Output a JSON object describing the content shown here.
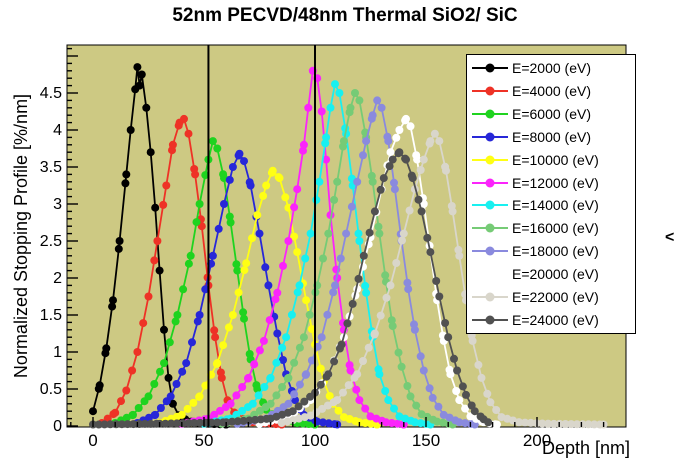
{
  "title": "52nm PECVD/48nm Thermal SiO2/ SiC",
  "side_glyph": "<",
  "colors": {
    "page_background": "#ffffff",
    "plot_background": "#cdc983",
    "frame_border": "#000000",
    "interface_lines": "#000000",
    "legend_background": "#ffffff"
  },
  "chart_data": {
    "type": "scatter",
    "title": "52nm PECVD/48nm Thermal SiO2/ SiC",
    "xlabel": "Depth [nm]",
    "ylabel": "Normalized Stopping Profile [%/nm]",
    "xlim": [
      -11.7,
      240
    ],
    "ylim": [
      0,
      5.15
    ],
    "x_ticks": [
      0,
      50,
      100,
      150,
      200
    ],
    "x_minor_step": 10,
    "y_ticks": [
      "0",
      "0.5",
      "1",
      "1.5",
      "2",
      "2.5",
      "3",
      "3.5",
      "4",
      "4.5"
    ],
    "y_minor_step": 0.1,
    "grid": false,
    "legend_position": "top-right",
    "vertical_lines": [
      52,
      100
    ],
    "marker_style": "filled-circle",
    "series": [
      {
        "name": "E=2000 (eV)",
        "color": "#000000",
        "points": [
          [
            0,
            0.2
          ],
          [
            3,
            0.55
          ],
          [
            6,
            1.05
          ],
          [
            9,
            1.7
          ],
          [
            12,
            2.5
          ],
          [
            15,
            3.4
          ],
          [
            17,
            4.0
          ],
          [
            19,
            4.55
          ],
          [
            20,
            4.85
          ],
          [
            21,
            4.6
          ],
          [
            22,
            4.75
          ],
          [
            24,
            4.3
          ],
          [
            26,
            3.7
          ],
          [
            28,
            2.95
          ],
          [
            30,
            2.1
          ],
          [
            32,
            1.3
          ],
          [
            34,
            0.65
          ],
          [
            36,
            0.3
          ],
          [
            39,
            0.12
          ],
          [
            45,
            0.05
          ],
          [
            52,
            0.03
          ],
          [
            60,
            0.02
          ]
        ]
      },
      {
        "name": "E=4000 (eV)",
        "color": "#ee3226",
        "points": [
          [
            4,
            0.04
          ],
          [
            10,
            0.18
          ],
          [
            15,
            0.48
          ],
          [
            20,
            1.0
          ],
          [
            25,
            1.75
          ],
          [
            29,
            2.5
          ],
          [
            33,
            3.25
          ],
          [
            36,
            3.8
          ],
          [
            39,
            4.1
          ],
          [
            41,
            4.15
          ],
          [
            43,
            3.95
          ],
          [
            46,
            3.4
          ],
          [
            49,
            2.7
          ],
          [
            52,
            1.9
          ],
          [
            55,
            1.2
          ],
          [
            58,
            0.65
          ],
          [
            61,
            0.3
          ],
          [
            65,
            0.12
          ],
          [
            72,
            0.05
          ],
          [
            85,
            0.02
          ]
        ]
      },
      {
        "name": "E=6000 (eV)",
        "color": "#1fd31f",
        "points": [
          [
            10,
            0.04
          ],
          [
            18,
            0.15
          ],
          [
            25,
            0.4
          ],
          [
            32,
            0.85
          ],
          [
            38,
            1.5
          ],
          [
            44,
            2.3
          ],
          [
            48,
            3.0
          ],
          [
            52,
            3.6
          ],
          [
            54,
            3.85
          ],
          [
            56,
            3.75
          ],
          [
            59,
            3.35
          ],
          [
            62,
            2.75
          ],
          [
            65,
            2.1
          ],
          [
            68,
            1.45
          ],
          [
            71,
            0.9
          ],
          [
            74,
            0.5
          ],
          [
            78,
            0.22
          ],
          [
            83,
            0.1
          ],
          [
            92,
            0.04
          ],
          [
            100,
            0.02
          ]
        ]
      },
      {
        "name": "E=8000 (eV)",
        "color": "#2727d8",
        "points": [
          [
            20,
            0.04
          ],
          [
            28,
            0.15
          ],
          [
            35,
            0.4
          ],
          [
            42,
            0.85
          ],
          [
            48,
            1.5
          ],
          [
            54,
            2.3
          ],
          [
            59,
            3.0
          ],
          [
            63,
            3.5
          ],
          [
            66,
            3.68
          ],
          [
            68,
            3.58
          ],
          [
            71,
            3.25
          ],
          [
            75,
            2.6
          ],
          [
            79,
            1.9
          ],
          [
            83,
            1.25
          ],
          [
            87,
            0.7
          ],
          [
            91,
            0.35
          ],
          [
            95,
            0.15
          ],
          [
            101,
            0.06
          ],
          [
            110,
            0.02
          ]
        ]
      },
      {
        "name": "E=10000 (eV)",
        "color": "#ffff14",
        "points": [
          [
            30,
            0.04
          ],
          [
            40,
            0.15
          ],
          [
            48,
            0.4
          ],
          [
            56,
            0.85
          ],
          [
            63,
            1.5
          ],
          [
            69,
            2.2
          ],
          [
            74,
            2.85
          ],
          [
            78,
            3.25
          ],
          [
            81,
            3.45
          ],
          [
            84,
            3.35
          ],
          [
            88,
            2.95
          ],
          [
            92,
            2.35
          ],
          [
            96,
            1.7
          ],
          [
            100,
            1.1
          ],
          [
            104,
            0.6
          ],
          [
            108,
            0.3
          ],
          [
            113,
            0.12
          ],
          [
            120,
            0.05
          ],
          [
            128,
            0.02
          ]
        ]
      },
      {
        "name": "E=12000 (eV)",
        "color": "#fb24fb",
        "points": [
          [
            40,
            0.03
          ],
          [
            52,
            0.1
          ],
          [
            62,
            0.3
          ],
          [
            70,
            0.65
          ],
          [
            77,
            1.15
          ],
          [
            83,
            1.8
          ],
          [
            88,
            2.5
          ],
          [
            92,
            3.2
          ],
          [
            95,
            3.8
          ],
          [
            97,
            4.3
          ],
          [
            99,
            4.8
          ],
          [
            101,
            4.7
          ],
          [
            103,
            4.25
          ],
          [
            105,
            3.6
          ],
          [
            107,
            2.85
          ],
          [
            110,
            2.0
          ],
          [
            113,
            1.3
          ],
          [
            116,
            0.75
          ],
          [
            120,
            0.35
          ],
          [
            125,
            0.13
          ],
          [
            132,
            0.05
          ],
          [
            140,
            0.02
          ]
        ]
      },
      {
        "name": "E=14000 (eV)",
        "color": "#18f0f0",
        "points": [
          [
            50,
            0.03
          ],
          [
            62,
            0.1
          ],
          [
            72,
            0.3
          ],
          [
            80,
            0.65
          ],
          [
            87,
            1.2
          ],
          [
            93,
            1.9
          ],
          [
            98,
            2.6
          ],
          [
            102,
            3.3
          ],
          [
            105,
            3.9
          ],
          [
            107,
            4.3
          ],
          [
            109,
            4.62
          ],
          [
            111,
            4.5
          ],
          [
            114,
            3.95
          ],
          [
            117,
            3.25
          ],
          [
            120,
            2.5
          ],
          [
            123,
            1.8
          ],
          [
            126,
            1.2
          ],
          [
            129,
            0.7
          ],
          [
            133,
            0.35
          ],
          [
            138,
            0.13
          ],
          [
            145,
            0.05
          ],
          [
            152,
            0.02
          ]
        ]
      },
      {
        "name": "E=16000 (eV)",
        "color": "#76cb76",
        "points": [
          [
            58,
            0.03
          ],
          [
            70,
            0.1
          ],
          [
            80,
            0.3
          ],
          [
            88,
            0.65
          ],
          [
            95,
            1.2
          ],
          [
            101,
            1.9
          ],
          [
            106,
            2.6
          ],
          [
            110,
            3.3
          ],
          [
            113,
            3.85
          ],
          [
            116,
            4.3
          ],
          [
            118,
            4.5
          ],
          [
            120,
            4.4
          ],
          [
            123,
            3.9
          ],
          [
            126,
            3.3
          ],
          [
            129,
            2.6
          ],
          [
            132,
            1.95
          ],
          [
            135,
            1.35
          ],
          [
            139,
            0.8
          ],
          [
            143,
            0.4
          ],
          [
            148,
            0.16
          ],
          [
            155,
            0.06
          ],
          [
            162,
            0.02
          ]
        ]
      },
      {
        "name": "E=18000 (eV)",
        "color": "#8a8ade",
        "points": [
          [
            65,
            0.03
          ],
          [
            78,
            0.1
          ],
          [
            88,
            0.3
          ],
          [
            96,
            0.7
          ],
          [
            103,
            1.2
          ],
          [
            109,
            1.9
          ],
          [
            114,
            2.6
          ],
          [
            119,
            3.3
          ],
          [
            123,
            3.85
          ],
          [
            126,
            4.2
          ],
          [
            128,
            4.4
          ],
          [
            130,
            4.3
          ],
          [
            133,
            3.85
          ],
          [
            136,
            3.2
          ],
          [
            139,
            2.5
          ],
          [
            142,
            1.85
          ],
          [
            145,
            1.3
          ],
          [
            149,
            0.75
          ],
          [
            153,
            0.38
          ],
          [
            158,
            0.15
          ],
          [
            165,
            0.05
          ],
          [
            172,
            0.02
          ]
        ]
      },
      {
        "name": "E=20000 (eV)",
        "color": "#ffffff",
        "points": [
          [
            75,
            0.03
          ],
          [
            88,
            0.12
          ],
          [
            98,
            0.35
          ],
          [
            106,
            0.7
          ],
          [
            113,
            1.2
          ],
          [
            119,
            1.85
          ],
          [
            125,
            2.55
          ],
          [
            130,
            3.2
          ],
          [
            134,
            3.7
          ],
          [
            138,
            4.0
          ],
          [
            141,
            4.15
          ],
          [
            143,
            4.05
          ],
          [
            146,
            3.6
          ],
          [
            149,
            3.0
          ],
          [
            152,
            2.35
          ],
          [
            155,
            1.7
          ],
          [
            158,
            1.15
          ],
          [
            161,
            0.7
          ],
          [
            165,
            0.35
          ],
          [
            170,
            0.13
          ],
          [
            176,
            0.05
          ],
          [
            182,
            0.02
          ]
        ]
      },
      {
        "name": "E=22000 (eV)",
        "color": "#d9d6cb",
        "points": [
          [
            85,
            0.04
          ],
          [
            98,
            0.14
          ],
          [
            110,
            0.35
          ],
          [
            119,
            0.7
          ],
          [
            127,
            1.25
          ],
          [
            134,
            1.9
          ],
          [
            140,
            2.6
          ],
          [
            145,
            3.2
          ],
          [
            149,
            3.6
          ],
          [
            152,
            3.85
          ],
          [
            154,
            3.95
          ],
          [
            156,
            3.85
          ],
          [
            159,
            3.45
          ],
          [
            162,
            2.9
          ],
          [
            165,
            2.3
          ],
          [
            168,
            1.7
          ],
          [
            171,
            1.15
          ],
          [
            175,
            0.65
          ],
          [
            179,
            0.32
          ],
          [
            184,
            0.12
          ],
          [
            192,
            0.05
          ],
          [
            205,
            0.03
          ],
          [
            230,
            0.02
          ]
        ]
      },
      {
        "name": "E=24000 (eV)",
        "color": "#515151",
        "points": [
          [
            0,
            0.02
          ],
          [
            30,
            0.03
          ],
          [
            60,
            0.05
          ],
          [
            80,
            0.1
          ],
          [
            90,
            0.2
          ],
          [
            100,
            0.45
          ],
          [
            106,
            0.7
          ],
          [
            112,
            1.1
          ],
          [
            117,
            1.65
          ],
          [
            122,
            2.3
          ],
          [
            127,
            2.9
          ],
          [
            131,
            3.35
          ],
          [
            135,
            3.6
          ],
          [
            138,
            3.7
          ],
          [
            141,
            3.6
          ],
          [
            144,
            3.35
          ],
          [
            148,
            2.9
          ],
          [
            152,
            2.35
          ],
          [
            156,
            1.75
          ],
          [
            160,
            1.2
          ],
          [
            164,
            0.75
          ],
          [
            168,
            0.42
          ],
          [
            172,
            0.2
          ],
          [
            176,
            0.09
          ],
          [
            178,
            0.05
          ]
        ]
      }
    ]
  }
}
